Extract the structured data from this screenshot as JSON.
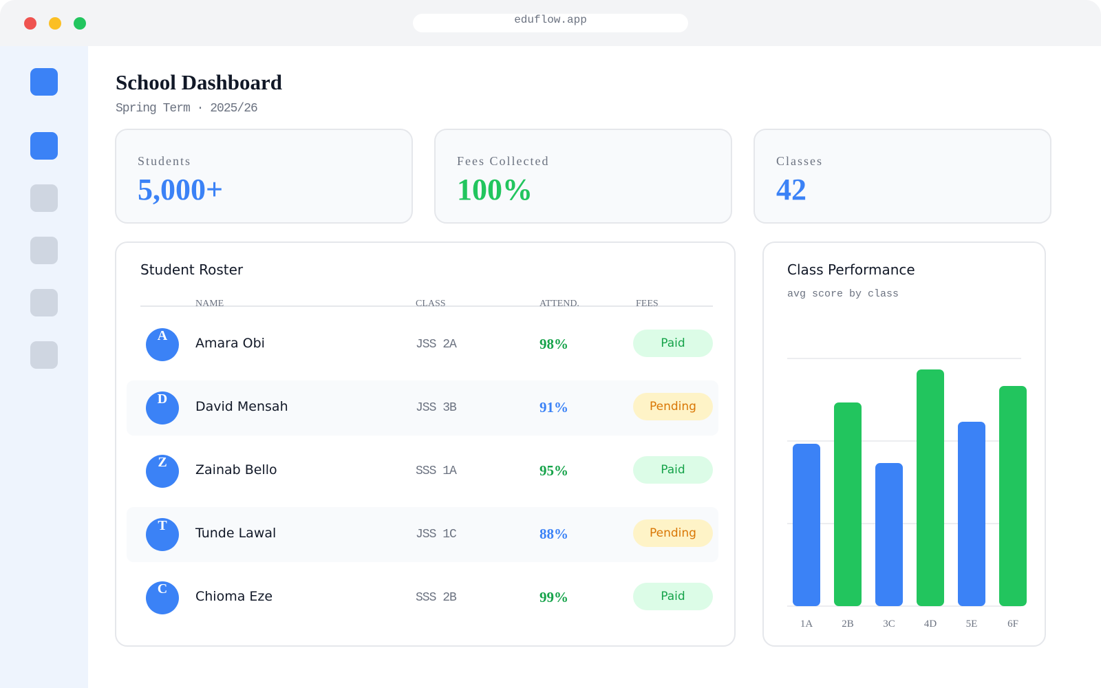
{
  "browser": {
    "url": "eduflow.app"
  },
  "header": {
    "title": "School Dashboard",
    "subtitle": "Spring Term · 2025/26"
  },
  "stats": [
    {
      "label": "Students",
      "value": "5,000+",
      "color": "#3b82f6"
    },
    {
      "label": "Fees Collected",
      "value": "100%",
      "color": "#22c55e"
    },
    {
      "label": "Classes",
      "value": "42",
      "color": "#3b82f6"
    }
  ],
  "roster": {
    "title": "Student Roster",
    "columns": [
      "NAME",
      "CLASS",
      "ATTEND.",
      "FEES"
    ],
    "rows": [
      {
        "initial": "A",
        "name": "Amara Obi",
        "class": "JSS 2A",
        "attendance": "98%",
        "attendance_color": "#16a34a",
        "fees": "Paid",
        "fees_color": "#16a34a",
        "fees_bg": "#dcfce7"
      },
      {
        "initial": "D",
        "name": "David Mensah",
        "class": "JSS 3B",
        "attendance": "91%",
        "attendance_color": "#3b82f6",
        "fees": "Pending",
        "fees_color": "#d97706",
        "fees_bg": "#fef3c7"
      },
      {
        "initial": "Z",
        "name": "Zainab Bello",
        "class": "SSS 1A",
        "attendance": "95%",
        "attendance_color": "#16a34a",
        "fees": "Paid",
        "fees_color": "#16a34a",
        "fees_bg": "#dcfce7"
      },
      {
        "initial": "T",
        "name": "Tunde Lawal",
        "class": "JSS 1C",
        "attendance": "88%",
        "attendance_color": "#3b82f6",
        "fees": "Pending",
        "fees_color": "#d97706",
        "fees_bg": "#fef3c7"
      },
      {
        "initial": "C",
        "name": "Chioma Eze",
        "class": "SSS 2B",
        "attendance": "99%",
        "attendance_color": "#16a34a",
        "fees": "Paid",
        "fees_color": "#16a34a",
        "fees_bg": "#dcfce7"
      }
    ]
  },
  "chart_data": {
    "type": "bar",
    "title": "Class Performance",
    "subtitle": "avg score by class",
    "categories": [
      "1A",
      "2B",
      "3C",
      "4D",
      "5E",
      "6F"
    ],
    "values": [
      59,
      74,
      52,
      86,
      67,
      80
    ],
    "colors": [
      "#3b82f6",
      "#22c55e",
      "#3b82f6",
      "#22c55e",
      "#3b82f6",
      "#22c55e"
    ],
    "ylim": [
      0,
      90
    ],
    "grid": true
  }
}
